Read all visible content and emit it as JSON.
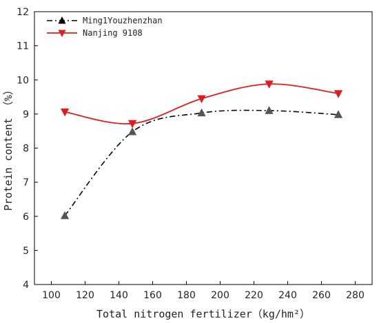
{
  "chart_data": {
    "type": "line",
    "title": "",
    "xlabel": "Total nitrogen fertilizer（kg/hm²）",
    "ylabel": "Protein content （%）",
    "xlim": [
      90,
      290
    ],
    "ylim": [
      4,
      12
    ],
    "x_ticks": [
      100,
      120,
      140,
      160,
      180,
      200,
      220,
      240,
      260,
      280
    ],
    "y_ticks": [
      4,
      5,
      6,
      7,
      8,
      9,
      10,
      11,
      12
    ],
    "legend_position": "top-left",
    "grid": false,
    "series": [
      {
        "name": "Ming1Youzhenzhan",
        "color": "#000000",
        "line_style": "dash-dot",
        "marker": "triangle-up",
        "marker_color": "#555555",
        "x": [
          108,
          148,
          189,
          229,
          270
        ],
        "y": [
          6.02,
          8.48,
          9.03,
          9.1,
          8.98
        ]
      },
      {
        "name": "Nanjing 9108",
        "color": "#e31a1c",
        "line_style": "solid",
        "marker": "triangle-down",
        "marker_color": "#e31a1c",
        "x": [
          108,
          148,
          189,
          229,
          270
        ],
        "y": [
          9.06,
          8.72,
          9.45,
          9.88,
          9.6
        ]
      }
    ]
  }
}
